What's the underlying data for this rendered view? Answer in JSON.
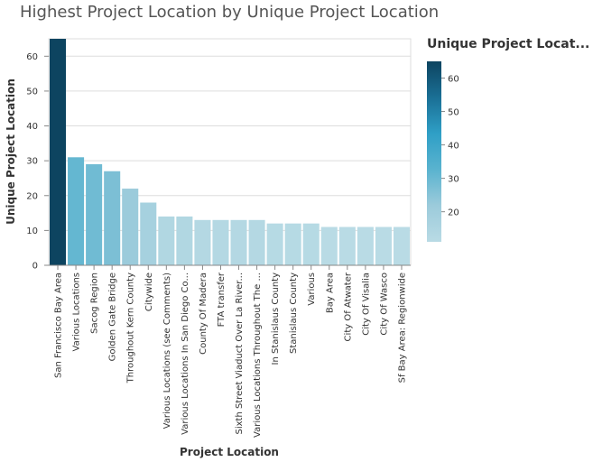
{
  "chart_data": {
    "type": "bar",
    "title": "Highest Project Location by Unique Project Location",
    "xlabel": "Project Location",
    "ylabel": "Unique Project Location",
    "ylim": [
      0,
      65
    ],
    "yticks": [
      0,
      10,
      20,
      30,
      40,
      50,
      60
    ],
    "grid": true,
    "categories": [
      "San Francisco Bay Area",
      "Various Locations",
      "Sacog Region",
      "Golden Gate Bridge",
      "Throughout Kern County",
      "Citywide",
      "Various Locations (see Comments)",
      "Various Locations In San Diego Co...",
      "County Of Madera",
      "FTA transfer",
      "Sixth Street Viaduct Over La River...",
      "Various Locations Throughout The ...",
      "In Stanislaus County",
      "Stanislaus County",
      "Various",
      "Bay Area",
      "City Of Atwater",
      "City Of Visalia",
      "City Of Wasco",
      "Sf Bay Area: Regionwide"
    ],
    "values": [
      65,
      31,
      29,
      27,
      22,
      18,
      14,
      14,
      13,
      13,
      13,
      13,
      12,
      12,
      12,
      11,
      11,
      11,
      11,
      11
    ],
    "legend": {
      "title": "Unique Project Locat...",
      "placement": "right",
      "range": [
        11,
        65
      ],
      "ticks": [
        20,
        30,
        40,
        50,
        60
      ],
      "colors": [
        "#b9dbe5",
        "#9ccbdb",
        "#5ab3cf",
        "#2f9fc6",
        "#1a6f95",
        "#0d4460"
      ]
    }
  }
}
